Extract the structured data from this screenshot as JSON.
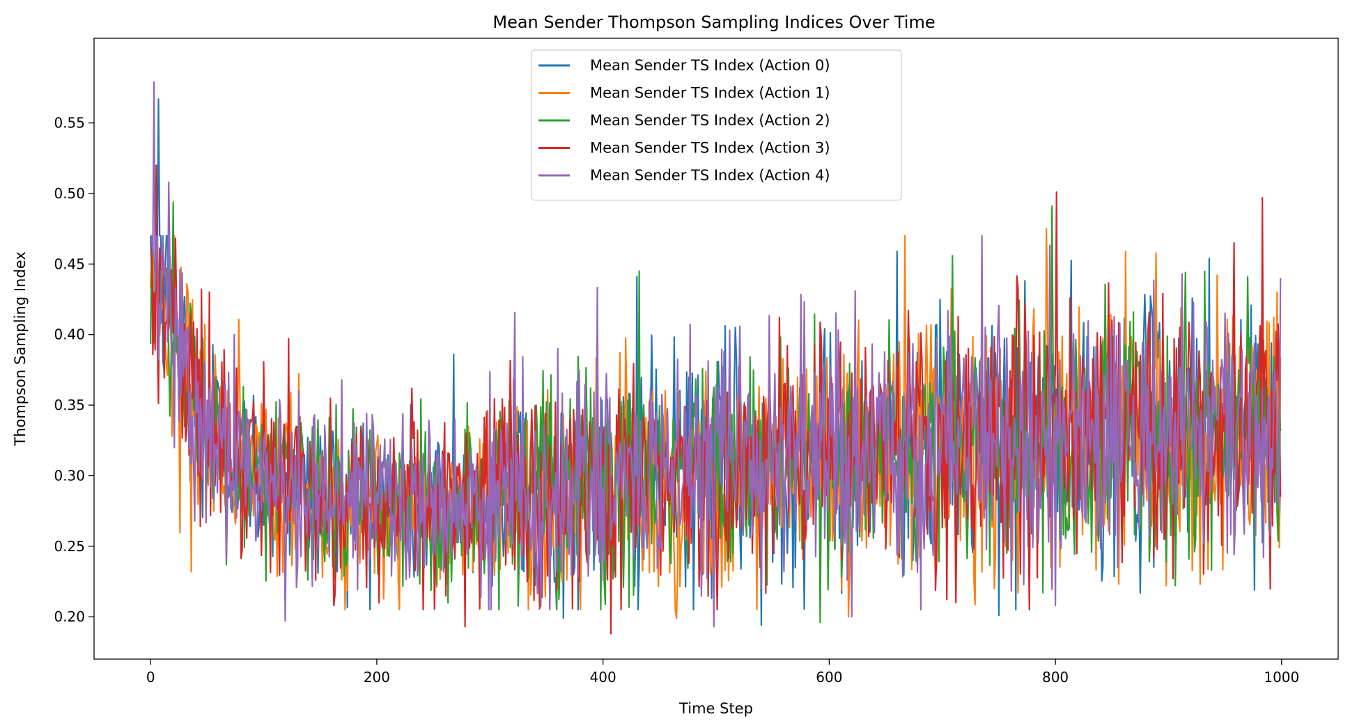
{
  "chart_data": {
    "type": "line",
    "title": "Mean Sender Thompson Sampling Indices Over Time",
    "xlabel": "Time Step",
    "ylabel": "Thompson Sampling Index",
    "xlim": [
      -50,
      1050
    ],
    "ylim": [
      0.17,
      0.61
    ],
    "xticks": [
      0,
      200,
      400,
      600,
      800,
      1000
    ],
    "xtick_labels": [
      "0",
      "200",
      "400",
      "600",
      "800",
      "1000"
    ],
    "yticks": [
      0.2,
      0.25,
      0.3,
      0.35,
      0.4,
      0.45,
      0.5,
      0.55
    ],
    "ytick_labels": [
      "0.20",
      "0.25",
      "0.30",
      "0.35",
      "0.40",
      "0.45",
      "0.50",
      "0.55"
    ],
    "grid": false,
    "legend_position": "upper-center",
    "n_steps": 1000,
    "series": [
      {
        "name": "Mean Sender TS Index (Action 0)",
        "color": "#1f77b4",
        "trend": [
          [
            0,
            0.47
          ],
          [
            15,
            0.42
          ],
          [
            40,
            0.35
          ],
          [
            80,
            0.31
          ],
          [
            150,
            0.285
          ],
          [
            250,
            0.28
          ],
          [
            350,
            0.29
          ],
          [
            450,
            0.3
          ],
          [
            550,
            0.31
          ],
          [
            650,
            0.32
          ],
          [
            750,
            0.325
          ],
          [
            850,
            0.33
          ],
          [
            1000,
            0.33
          ]
        ],
        "peaks": [
          [
            7,
            0.567
          ],
          [
            268,
            0.386
          ],
          [
            430,
            0.441
          ],
          [
            660,
            0.459
          ],
          [
            936,
            0.454
          ]
        ],
        "troughs": [
          [
            365,
            0.199
          ],
          [
            540,
            0.194
          ],
          [
            750,
            0.201
          ],
          [
            976,
            0.219
          ]
        ]
      },
      {
        "name": "Mean Sender TS Index (Action 1)",
        "color": "#ff7f0e",
        "trend": [
          [
            0,
            0.46
          ],
          [
            15,
            0.41
          ],
          [
            40,
            0.345
          ],
          [
            80,
            0.305
          ],
          [
            150,
            0.28
          ],
          [
            250,
            0.275
          ],
          [
            350,
            0.285
          ],
          [
            450,
            0.295
          ],
          [
            550,
            0.305
          ],
          [
            650,
            0.315
          ],
          [
            750,
            0.32
          ],
          [
            850,
            0.325
          ],
          [
            1000,
            0.33
          ]
        ],
        "peaks": [
          [
            5,
            0.51
          ],
          [
            33,
            0.43
          ],
          [
            667,
            0.47
          ],
          [
            792,
            0.475
          ],
          [
            862,
            0.459
          ]
        ],
        "troughs": [
          [
            465,
            0.199
          ],
          [
            617,
            0.2
          ]
        ]
      },
      {
        "name": "Mean Sender TS Index (Action 2)",
        "color": "#2ca02c",
        "trend": [
          [
            0,
            0.46
          ],
          [
            15,
            0.42
          ],
          [
            40,
            0.345
          ],
          [
            80,
            0.31
          ],
          [
            150,
            0.285
          ],
          [
            250,
            0.275
          ],
          [
            350,
            0.29
          ],
          [
            450,
            0.3
          ],
          [
            550,
            0.31
          ],
          [
            650,
            0.315
          ],
          [
            750,
            0.32
          ],
          [
            850,
            0.325
          ],
          [
            1000,
            0.33
          ]
        ],
        "peaks": [
          [
            20,
            0.494
          ],
          [
            432,
            0.445
          ],
          [
            709,
            0.456
          ],
          [
            797,
            0.491
          ],
          [
            915,
            0.444
          ]
        ],
        "troughs": [
          [
            592,
            0.196
          ],
          [
            777,
            0.21
          ]
        ]
      },
      {
        "name": "Mean Sender TS Index (Action 3)",
        "color": "#d62728",
        "trend": [
          [
            0,
            0.47
          ],
          [
            15,
            0.42
          ],
          [
            40,
            0.35
          ],
          [
            80,
            0.31
          ],
          [
            150,
            0.285
          ],
          [
            250,
            0.28
          ],
          [
            350,
            0.29
          ],
          [
            450,
            0.3
          ],
          [
            550,
            0.31
          ],
          [
            650,
            0.32
          ],
          [
            750,
            0.325
          ],
          [
            850,
            0.33
          ],
          [
            1000,
            0.335
          ]
        ],
        "peaks": [
          [
            5,
            0.52
          ],
          [
            122,
            0.397
          ],
          [
            801,
            0.501
          ],
          [
            983,
            0.497
          ],
          [
            958,
            0.465
          ]
        ],
        "troughs": [
          [
            278,
            0.193
          ],
          [
            407,
            0.188
          ],
          [
            712,
            0.21
          ]
        ]
      },
      {
        "name": "Mean Sender TS Index (Action 4)",
        "color": "#9467bd",
        "trend": [
          [
            0,
            0.48
          ],
          [
            15,
            0.43
          ],
          [
            40,
            0.35
          ],
          [
            80,
            0.31
          ],
          [
            150,
            0.285
          ],
          [
            250,
            0.275
          ],
          [
            350,
            0.29
          ],
          [
            450,
            0.3
          ],
          [
            550,
            0.31
          ],
          [
            650,
            0.32
          ],
          [
            750,
            0.325
          ],
          [
            850,
            0.33
          ],
          [
            1000,
            0.34
          ]
        ],
        "peaks": [
          [
            3,
            0.579
          ],
          [
            16,
            0.508
          ],
          [
            74,
            0.4
          ],
          [
            705,
            0.417
          ],
          [
            912,
            0.443
          ],
          [
            999,
            0.44
          ]
        ],
        "troughs": [
          [
            119,
            0.197
          ],
          [
            498,
            0.193
          ],
          [
            620,
            0.2
          ],
          [
            800,
            0.208
          ]
        ]
      }
    ]
  }
}
